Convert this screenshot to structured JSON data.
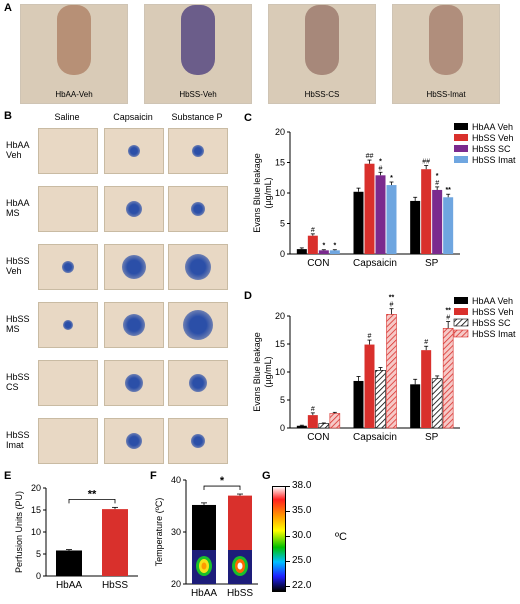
{
  "panel_a": {
    "label": "A",
    "photos": [
      {
        "caption": "HbAA-Veh"
      },
      {
        "caption": "HbSS-Veh"
      },
      {
        "caption": "HbSS-CS"
      },
      {
        "caption": "HbSS-Imat"
      }
    ]
  },
  "panel_b": {
    "label": "B",
    "columns": [
      "Saline",
      "Capsaicin",
      "Substance P"
    ],
    "rows": [
      [
        "HbAA",
        "Veh"
      ],
      [
        "HbAA",
        "MS"
      ],
      [
        "HbSS",
        "Veh"
      ],
      [
        "HbSS",
        "MS"
      ],
      [
        "HbSS",
        "CS"
      ],
      [
        "HbSS",
        "Imat"
      ]
    ],
    "spot_colors": {
      "blue": "#2b4fa8",
      "tissue": "#e8d8c4"
    }
  },
  "panel_labels": {
    "c": "C",
    "d": "D",
    "e": "E",
    "f": "F",
    "g": "G"
  },
  "colorbar": {
    "ticks": [
      "38.0",
      "35.0",
      "30.0",
      "25.0",
      "22.0"
    ],
    "unit": "ºC"
  },
  "chart_data": [
    {
      "id": "C",
      "type": "bar",
      "ylabel": "Evans Blue leakage\n(µg/mL)",
      "ylim": [
        0,
        20
      ],
      "yticks": [
        0,
        5,
        10,
        15,
        20
      ],
      "categories": [
        "CON",
        "Capsaicin",
        "SP"
      ],
      "legend_position": "top-right",
      "series": [
        {
          "name": "HbAA Veh",
          "color": "#000000",
          "values": [
            0.8,
            10.2,
            8.7
          ],
          "errors": [
            0.2,
            0.6,
            0.6
          ],
          "annotations": [
            "",
            "",
            ""
          ]
        },
        {
          "name": "HbSS Veh",
          "color": "#d9302c",
          "values": [
            3.0,
            14.8,
            13.9
          ],
          "errors": [
            0.3,
            0.6,
            0.6
          ],
          "annotations": [
            "#",
            "##",
            "##"
          ]
        },
        {
          "name": "HbSS SC",
          "color": "#7b2a8e",
          "values": [
            0.6,
            12.9,
            10.5
          ],
          "errors": [
            0.1,
            0.5,
            0.5
          ],
          "annotations": [
            "*",
            "*\n#",
            "*\n#"
          ]
        },
        {
          "name": "HbSS Imat",
          "color": "#6fa6e0",
          "values": [
            0.6,
            11.3,
            9.3
          ],
          "errors": [
            0.1,
            0.5,
            0.5
          ],
          "annotations": [
            "*",
            "*",
            "**"
          ]
        }
      ]
    },
    {
      "id": "D",
      "type": "bar",
      "ylabel": "Evans Blue leakage\n(µg/mL)",
      "ylim": [
        0,
        20
      ],
      "yticks": [
        0,
        5,
        10,
        15,
        20
      ],
      "categories": [
        "CON",
        "Capsaicin",
        "SP"
      ],
      "legend_position": "top-right",
      "series": [
        {
          "name": "HbAA Veh",
          "color": "#000000",
          "pattern": "solid",
          "values": [
            0.4,
            8.4,
            7.8
          ],
          "errors": [
            0.1,
            0.8,
            0.9
          ],
          "annotations": [
            "",
            "",
            ""
          ]
        },
        {
          "name": "HbSS Veh",
          "color": "#d9302c",
          "pattern": "solid",
          "values": [
            2.3,
            14.9,
            13.9
          ],
          "errors": [
            0.4,
            0.8,
            0.7
          ],
          "annotations": [
            "#",
            "#",
            "#"
          ]
        },
        {
          "name": "HbSS SC",
          "color": "#000000",
          "pattern": "hatch",
          "values": [
            0.8,
            10.3,
            8.8
          ],
          "errors": [
            0.1,
            0.5,
            0.5
          ],
          "annotations": [
            "",
            "",
            ""
          ]
        },
        {
          "name": "HbSS Imat",
          "color": "#d9302c",
          "pattern": "hatch",
          "values": [
            2.6,
            20.3,
            17.8
          ],
          "errors": [
            0.2,
            1.0,
            1.2
          ],
          "annotations": [
            "",
            "**\n#",
            "**\n#"
          ]
        }
      ]
    },
    {
      "id": "E",
      "type": "bar",
      "ylabel": "Perfusion Units (PU)",
      "ylim": [
        0,
        20
      ],
      "yticks": [
        0,
        5,
        10,
        15,
        20
      ],
      "categories": [
        "HbAA",
        "HbSS"
      ],
      "values": [
        5.8,
        15.2
      ],
      "errors": [
        0.2,
        0.4
      ],
      "colors": [
        "#000000",
        "#d9302c"
      ],
      "significance": "**"
    },
    {
      "id": "F",
      "type": "bar",
      "ylabel": "Temperature (ºC)",
      "ylim": [
        20,
        40
      ],
      "yticks": [
        20,
        30,
        40
      ],
      "categories": [
        "HbAA",
        "HbSS"
      ],
      "values": [
        35.2,
        37.0
      ],
      "errors": [
        0.4,
        0.3
      ],
      "colors": [
        "#000000",
        "#d9302c"
      ],
      "significance": "*"
    }
  ]
}
